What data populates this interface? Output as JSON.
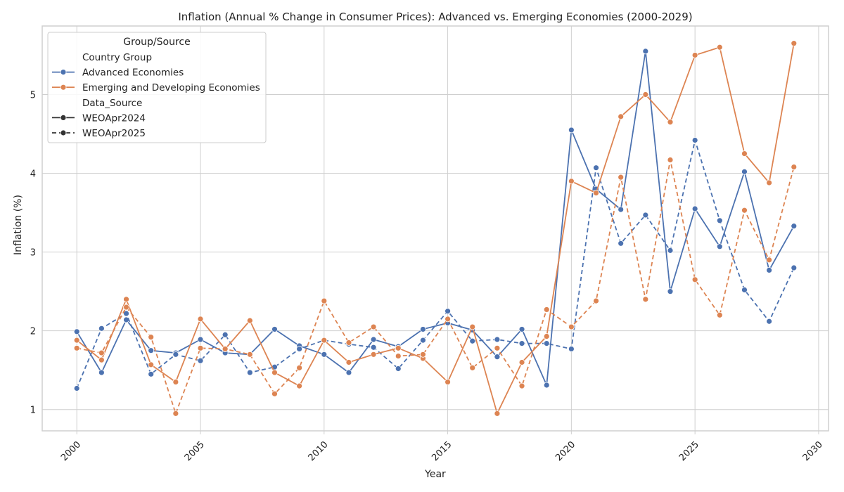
{
  "chart_data": {
    "type": "line",
    "title": "Inflation (Annual % Change in Consumer Prices): Advanced vs. Emerging Economies (2000-2029)",
    "xlabel": "Year",
    "ylabel": "Inflation (%)",
    "xlim": [
      1998.6,
      2030.4
    ],
    "ylim": [
      0.73,
      5.87
    ],
    "xticks": [
      2000,
      2005,
      2010,
      2015,
      2020,
      2025,
      2030
    ],
    "yticks": [
      1,
      2,
      3,
      4,
      5
    ],
    "grid": true,
    "legend": {
      "title": "Group/Source",
      "placement": "top-left",
      "hue_title": "Country Group",
      "style_title": "Data_Source",
      "items": [
        "Advanced Economies",
        "Emerging and Developing Economies"
      ],
      "styles": [
        "WEOApr2024",
        "WEOApr2025"
      ]
    },
    "colors": {
      "Advanced Economies": "#4c72b0",
      "Emerging and Developing Economies": "#dd8452"
    },
    "x": [
      2000,
      2001,
      2002,
      2003,
      2004,
      2005,
      2006,
      2007,
      2008,
      2009,
      2010,
      2011,
      2012,
      2013,
      2014,
      2015,
      2016,
      2017,
      2018,
      2019,
      2020,
      2021,
      2022,
      2023,
      2024,
      2025,
      2026,
      2027,
      2028,
      2029
    ],
    "series": [
      {
        "name": "Advanced Economies",
        "group": "Advanced Economies",
        "source": "WEOApr2024",
        "values": [
          1.99,
          1.47,
          2.14,
          1.75,
          1.72,
          1.89,
          1.72,
          1.7,
          2.02,
          1.81,
          1.7,
          1.47,
          1.89,
          1.8,
          2.02,
          2.1,
          2.01,
          1.67,
          2.02,
          1.31,
          4.55,
          3.8,
          3.54,
          5.55,
          2.5,
          3.55,
          3.07,
          4.02,
          2.77,
          3.33
        ]
      },
      {
        "name": "Advanced Economies",
        "group": "Advanced Economies",
        "source": "WEOApr2025",
        "values": [
          1.27,
          2.03,
          2.22,
          1.45,
          1.7,
          1.62,
          1.95,
          1.47,
          1.54,
          1.77,
          1.88,
          1.83,
          1.79,
          1.52,
          1.88,
          2.25,
          1.87,
          1.89,
          1.84,
          1.84,
          1.77,
          4.07,
          3.11,
          3.47,
          3.02,
          4.42,
          3.4,
          2.52,
          2.12,
          2.8
        ]
      },
      {
        "name": "Emerging and Developing Economies",
        "group": "Emerging and Developing Economies",
        "source": "WEOApr2024",
        "values": [
          1.88,
          1.63,
          2.4,
          1.57,
          1.35,
          2.15,
          1.77,
          2.13,
          1.47,
          1.3,
          1.88,
          1.6,
          1.7,
          1.78,
          1.65,
          1.35,
          2.05,
          0.95,
          1.6,
          1.93,
          3.9,
          3.75,
          4.72,
          5.0,
          4.65,
          5.5,
          5.6,
          4.25,
          3.88,
          5.65
        ]
      },
      {
        "name": "Emerging and Developing Economies",
        "group": "Emerging and Developing Economies",
        "source": "WEOApr2025",
        "values": [
          1.78,
          1.72,
          2.3,
          1.92,
          0.95,
          1.78,
          1.77,
          1.7,
          1.2,
          1.53,
          2.38,
          1.85,
          2.05,
          1.68,
          1.7,
          2.15,
          1.53,
          1.78,
          1.3,
          2.27,
          2.05,
          2.38,
          3.95,
          2.4,
          4.17,
          2.65,
          2.2,
          3.53,
          2.9,
          4.08
        ]
      }
    ]
  }
}
